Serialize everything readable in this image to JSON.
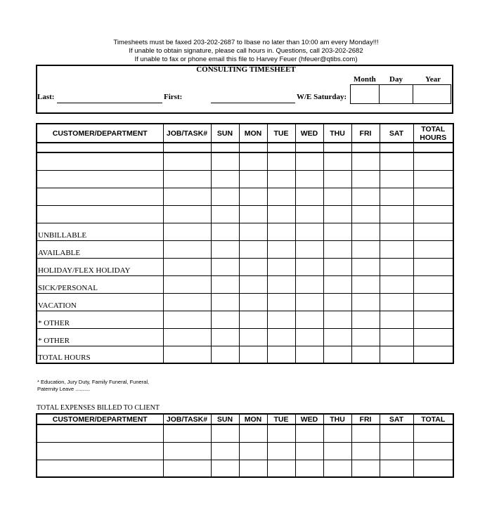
{
  "notices": [
    "Timesheets must be faxed 203-202-2687 to Ibase no later than 10:00 am every Monday!!!",
    "If unable to obtain signature, please call hours in.  Questions, call 203-202-2682",
    "If unable to fax or phone email this file to Harvey Feuer (hfeuer@qtibs.com)"
  ],
  "header": {
    "title": "CONSULTING TIMESHEET",
    "last_label": "Last:",
    "first_label": "First:",
    "we_label": "W/E Saturday:",
    "date_labels": [
      "Month",
      "Day",
      "Year"
    ]
  },
  "timesheet": {
    "columns": [
      "CUSTOMER/DEPARTMENT",
      "JOB/TASK#",
      "SUN",
      "MON",
      "TUE",
      "WED",
      "THU",
      "FRI",
      "SAT",
      "TOTAL HOURS"
    ],
    "rows": [
      "",
      "",
      "",
      "",
      "",
      "UNBILLABLE",
      "AVAILABLE",
      "HOLIDAY/FLEX HOLIDAY",
      "SICK/PERSONAL",
      "VACATION",
      "* OTHER",
      "* OTHER",
      "TOTAL HOURS"
    ]
  },
  "footnote": [
    "* Education, Jury Duty, Family Funeral, Funeral,",
    "Paternity Leave .........."
  ],
  "expenses": {
    "title": "TOTAL EXPENSES BILLED TO CLIENT",
    "columns": [
      "CUSTOMER/DEPARTMENT",
      "JOB/TASK#",
      "SUN",
      "MON",
      "TUE",
      "WED",
      "THU",
      "FRI",
      "SAT",
      "TOTAL"
    ],
    "rows": [
      "",
      "",
      ""
    ]
  }
}
